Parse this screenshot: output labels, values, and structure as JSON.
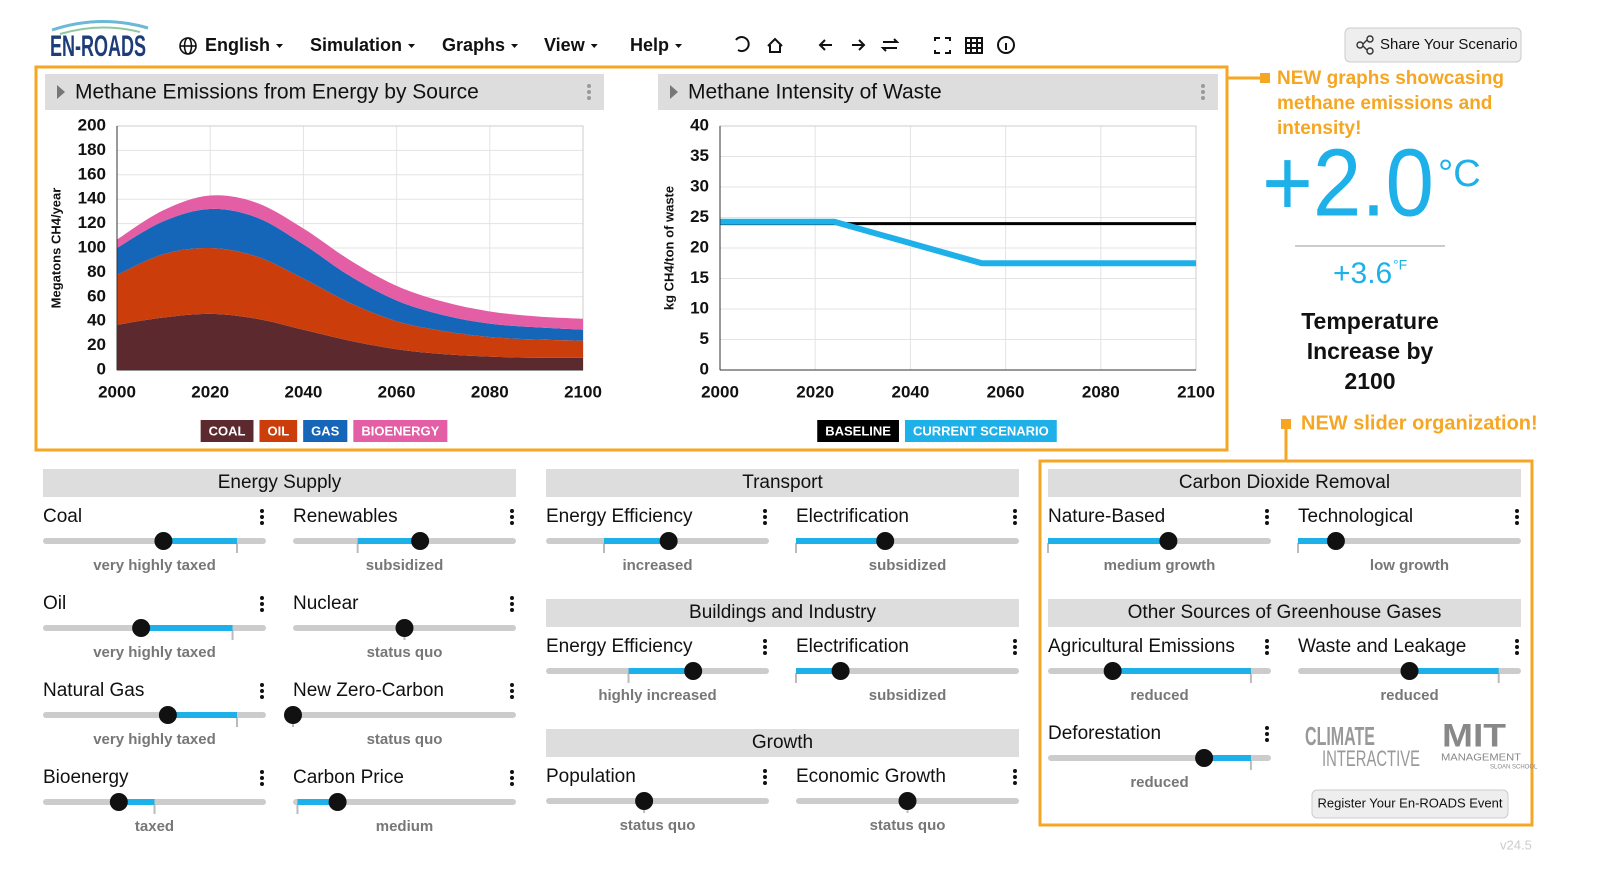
{
  "header": {
    "logo": "EN-ROADS",
    "menu": [
      "English",
      "Simulation",
      "Graphs",
      "View",
      "Help"
    ],
    "share_button": "Share Your Scenario"
  },
  "chart_data": [
    {
      "type": "area",
      "stacked": true,
      "title": "Methane Emissions from Energy by Source",
      "y_label": "Megatons CH4/year",
      "x": [
        2000,
        2010,
        2020,
        2030,
        2040,
        2050,
        2060,
        2070,
        2080,
        2090,
        2100
      ],
      "series": [
        {
          "name": "COAL",
          "color": "#5c2a2e",
          "values": [
            37,
            43,
            46,
            42,
            33,
            24,
            17,
            13,
            11,
            10,
            10
          ]
        },
        {
          "name": "OIL",
          "color": "#cc3d0c",
          "values": [
            41,
            52,
            54,
            51,
            42,
            31,
            23,
            19,
            16,
            15,
            14
          ]
        },
        {
          "name": "GAS",
          "color": "#1565b8",
          "values": [
            22,
            27,
            32,
            32,
            28,
            22,
            17,
            13,
            11,
            10,
            9
          ]
        },
        {
          "name": "BIOENERGY",
          "color": "#e35ea5",
          "values": [
            7,
            9,
            11,
            12,
            13,
            13,
            12,
            11,
            10,
            9,
            9
          ]
        }
      ],
      "xlim": [
        2000,
        2100
      ],
      "xticks": [
        2000,
        2020,
        2040,
        2060,
        2080,
        2100
      ],
      "ylim": [
        0,
        200
      ],
      "yticks": [
        0,
        20,
        40,
        60,
        80,
        100,
        120,
        140,
        160,
        180,
        200
      ],
      "grid": true
    },
    {
      "type": "line",
      "title": "Methane Intensity of Waste",
      "y_label": "kg CH4/ton of waste",
      "x": [
        2000,
        2024,
        2055,
        2100
      ],
      "series": [
        {
          "name": "BASELINE",
          "color": "#000000",
          "values": [
            24,
            24,
            24,
            24
          ]
        },
        {
          "name": "CURRENT SCENARIO",
          "color": "#1eb0e8",
          "values": [
            24.3,
            24.3,
            17.5,
            17.5
          ]
        }
      ],
      "xlim": [
        2000,
        2100
      ],
      "xticks": [
        2000,
        2020,
        2040,
        2060,
        2080,
        2100
      ],
      "ylim": [
        0,
        40
      ],
      "yticks": [
        0,
        5,
        10,
        15,
        20,
        25,
        30,
        35,
        40
      ],
      "grid": true
    }
  ],
  "annotations": [
    "NEW graphs showcasing methane emissions and intensity!",
    "NEW slider organization!"
  ],
  "temperature": {
    "celsius": "+2.0",
    "celsius_unit": "°C",
    "fahrenheit": "+3.6",
    "fahrenheit_unit": "°F",
    "caption": "Temperature Increase by 2100"
  },
  "slider_groups": [
    {
      "title": "Energy Supply",
      "sliders": [
        {
          "label": "Coal",
          "status": "very highly taxed",
          "value": 54,
          "baseline": 87
        },
        {
          "label": "Renewables",
          "status": "subsidized",
          "value": 57,
          "baseline": 29
        },
        {
          "label": "Oil",
          "status": "very highly taxed",
          "value": 44,
          "baseline": 85
        },
        {
          "label": "Nuclear",
          "status": "status quo",
          "value": 50,
          "baseline": 50
        },
        {
          "label": "Natural Gas",
          "status": "very highly taxed",
          "value": 56,
          "baseline": 87
        },
        {
          "label": "New Zero-Carbon",
          "status": "status quo",
          "value": 0,
          "baseline": 0
        },
        {
          "label": "Bioenergy",
          "status": "taxed",
          "value": 34,
          "baseline": 50
        },
        {
          "label": "Carbon Price",
          "status": "medium",
          "value": 20,
          "baseline": 2
        }
      ]
    },
    {
      "title": "Transport",
      "sliders": [
        {
          "label": "Energy Efficiency",
          "status": "increased",
          "value": 55,
          "baseline": 26
        },
        {
          "label": "Electrification",
          "status": "subsidized",
          "value": 40,
          "baseline": 0
        }
      ]
    },
    {
      "title": "Buildings and Industry",
      "sliders": [
        {
          "label": "Energy Efficiency",
          "status": "highly increased",
          "value": 66,
          "baseline": 37
        },
        {
          "label": "Electrification",
          "status": "subsidized",
          "value": 20,
          "baseline": 0
        }
      ]
    },
    {
      "title": "Growth",
      "sliders": [
        {
          "label": "Population",
          "status": "status quo",
          "value": 44,
          "baseline": 44
        },
        {
          "label": "Economic Growth",
          "status": "status quo",
          "value": 50,
          "baseline": 50
        }
      ]
    },
    {
      "title": "Carbon Dioxide Removal",
      "sliders": [
        {
          "label": "Nature-Based",
          "status": "medium growth",
          "value": 54,
          "baseline": 0
        },
        {
          "label": "Technological",
          "status": "low growth",
          "value": 17,
          "baseline": 0
        }
      ]
    },
    {
      "title": "Other Sources of Greenhouse Gases",
      "sliders": [
        {
          "label": "Agricultural Emissions",
          "status": "reduced",
          "value": 29,
          "baseline": 91
        },
        {
          "label": "Waste and Leakage",
          "status": "reduced",
          "value": 50,
          "baseline": 90
        },
        {
          "label": "Deforestation",
          "status": "reduced",
          "value": 70,
          "baseline": 91
        }
      ]
    }
  ],
  "logos": {
    "climate": "CLIMATE",
    "interactive": "INTERACTIVE",
    "mit": "MIT",
    "management": "MANAGEMENT",
    "sloan": "SLOAN SCHOOL"
  },
  "register_button": "Register Your En-ROADS Event",
  "version": "v24.5"
}
